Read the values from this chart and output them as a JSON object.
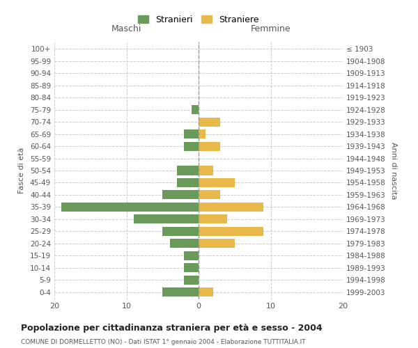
{
  "age_groups": [
    "0-4",
    "5-9",
    "10-14",
    "15-19",
    "20-24",
    "25-29",
    "30-34",
    "35-39",
    "40-44",
    "45-49",
    "50-54",
    "55-59",
    "60-64",
    "65-69",
    "70-74",
    "75-79",
    "80-84",
    "85-89",
    "90-94",
    "95-99",
    "100+"
  ],
  "birth_years": [
    "1999-2003",
    "1994-1998",
    "1989-1993",
    "1984-1988",
    "1979-1983",
    "1974-1978",
    "1969-1973",
    "1964-1968",
    "1959-1963",
    "1954-1958",
    "1949-1953",
    "1944-1948",
    "1939-1943",
    "1934-1938",
    "1929-1933",
    "1924-1928",
    "1919-1923",
    "1914-1918",
    "1909-1913",
    "1904-1908",
    "≤ 1903"
  ],
  "males": [
    5,
    2,
    2,
    2,
    4,
    5,
    9,
    19,
    5,
    3,
    3,
    0,
    2,
    2,
    0,
    1,
    0,
    0,
    0,
    0,
    0
  ],
  "females": [
    2,
    0,
    0,
    0,
    5,
    9,
    4,
    9,
    3,
    5,
    2,
    0,
    3,
    1,
    3,
    0,
    0,
    0,
    0,
    0,
    0
  ],
  "male_color": "#6a9a5a",
  "female_color": "#e8b84b",
  "title": "Popolazione per cittadinanza straniera per età e sesso - 2004",
  "subtitle": "COMUNE DI DORMELLETTO (NO) - Dati ISTAT 1° gennaio 2004 - Elaborazione TUTTITALIA.IT",
  "xlabel_left": "Maschi",
  "xlabel_right": "Femmine",
  "ylabel_left": "Fasce di età",
  "ylabel_right": "Anni di nascita",
  "legend_male": "Stranieri",
  "legend_female": "Straniere",
  "xlim": 20,
  "background_color": "#ffffff",
  "grid_color": "#cccccc"
}
